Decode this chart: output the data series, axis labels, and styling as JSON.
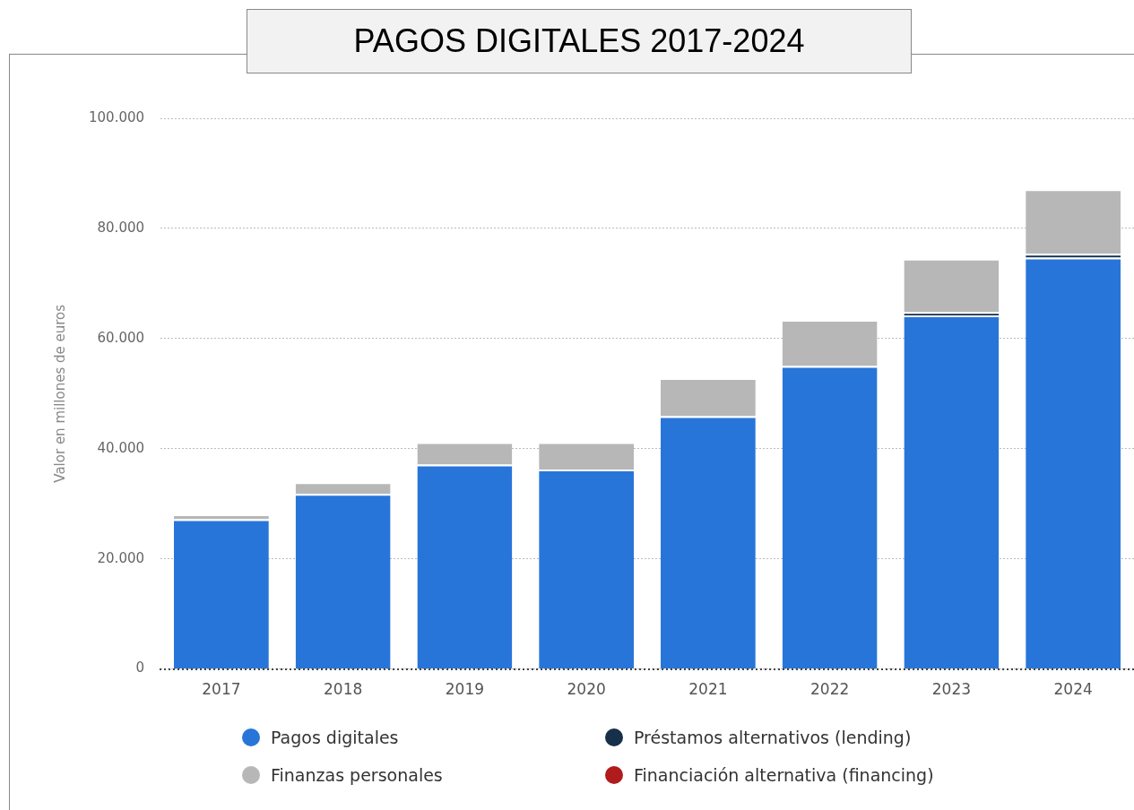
{
  "chart_data": {
    "type": "bar",
    "title": "PAGOS DIGITALES 2017-2024",
    "ylabel": "Valor en millones de euros",
    "categories": [
      "2017",
      "2018",
      "2019",
      "2020",
      "2021",
      "2022",
      "2023",
      "2024"
    ],
    "stacked": true,
    "series": [
      {
        "name": "Pagos digitales",
        "color": "#2875d9",
        "values": [
          27200,
          31800,
          37100,
          36200,
          45900,
          55000,
          64200,
          74700
        ]
      },
      {
        "name": "Préstamos alternativos (lending)",
        "color": "#17304a",
        "values": [
          null,
          null,
          null,
          null,
          null,
          null,
          600,
          700
        ]
      },
      {
        "name": "Finanzas personales",
        "color": "#b7b7b7",
        "values": [
          900,
          2100,
          4100,
          5000,
          6900,
          8400,
          9700,
          11700
        ]
      },
      {
        "name": "Financiación alternativa (financing)",
        "color": "#b01c1c",
        "values": [
          null,
          null,
          null,
          null,
          null,
          null,
          null,
          null
        ]
      }
    ],
    "ylim": [
      0,
      100000
    ],
    "yticks": [
      {
        "value": 0,
        "label": "0"
      },
      {
        "value": 20000,
        "label": "20.000"
      },
      {
        "value": 40000,
        "label": "40.000"
      },
      {
        "value": 60000,
        "label": "60.000"
      },
      {
        "value": 80000,
        "label": "80.000"
      },
      {
        "value": 100000,
        "label": "100.000"
      }
    ],
    "grid": "y",
    "legend": "bottom"
  }
}
